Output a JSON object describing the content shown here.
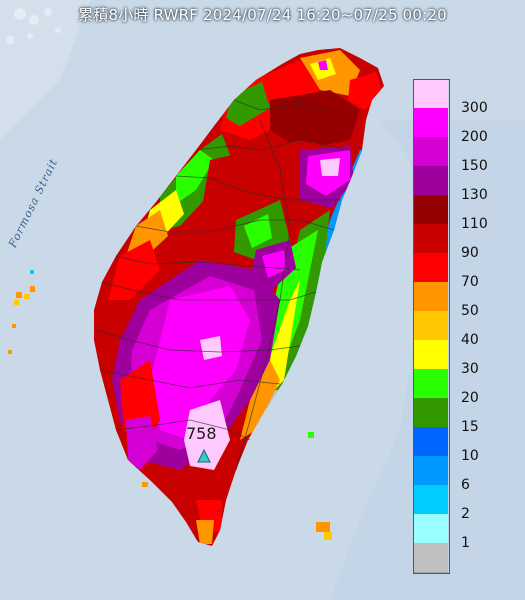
{
  "title": "累積8小時 RWRF 2024/07/24 16:20~07/25 00:20",
  "map": {
    "sea_label": "Formosa Strait",
    "max_value": "758",
    "sea_color": "#c9d9e8"
  },
  "legend": {
    "levels": [
      {
        "label": "300",
        "color": "#ffc8ff"
      },
      {
        "label": "200",
        "color": "#ff00ff"
      },
      {
        "label": "150",
        "color": "#d400d4"
      },
      {
        "label": "130",
        "color": "#9d009d"
      },
      {
        "label": "110",
        "color": "#960000"
      },
      {
        "label": "90",
        "color": "#c80000"
      },
      {
        "label": "70",
        "color": "#ff0000"
      },
      {
        "label": "50",
        "color": "#ff9600"
      },
      {
        "label": "40",
        "color": "#ffc800"
      },
      {
        "label": "30",
        "color": "#ffff00"
      },
      {
        "label": "20",
        "color": "#2aff00"
      },
      {
        "label": "15",
        "color": "#339900"
      },
      {
        "label": "10",
        "color": "#0066ff"
      },
      {
        "label": "6",
        "color": "#0099ff"
      },
      {
        "label": "2",
        "color": "#00ccff"
      },
      {
        "label": "1",
        "color": "#99ffff"
      },
      {
        "label": "",
        "color": "#c0c0c0"
      }
    ]
  }
}
